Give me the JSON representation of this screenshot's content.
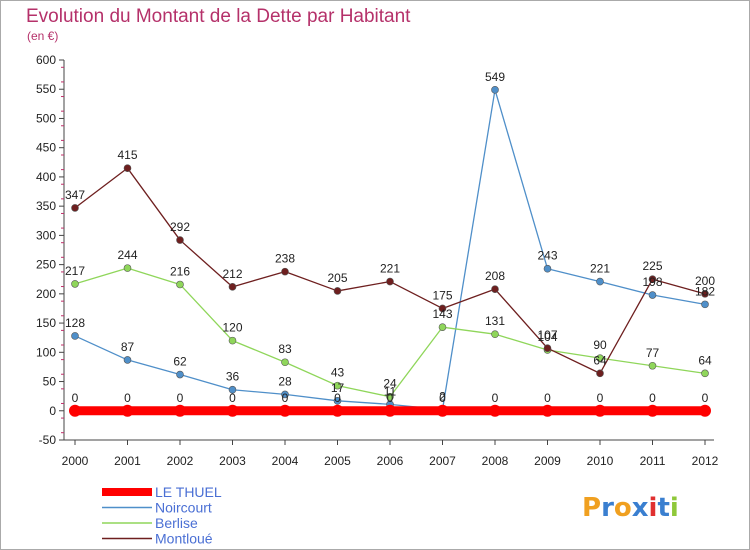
{
  "chart_data": {
    "type": "line",
    "title": "Evolution du Montant de la Dette par Habitant",
    "subtitle": "(en €)",
    "x": [
      "2000",
      "2001",
      "2002",
      "2003",
      "2004",
      "2005",
      "2006",
      "2007",
      "2008",
      "2009",
      "2010",
      "2011",
      "2012"
    ],
    "ylim": [
      -50,
      600
    ],
    "yticks": [
      -50,
      0,
      50,
      100,
      150,
      200,
      250,
      300,
      350,
      400,
      450,
      500,
      550,
      600
    ],
    "grid": false,
    "legend_position": "bottom-left",
    "series": [
      {
        "name": "LE THUEL",
        "color": "#ff0000",
        "values": [
          0,
          0,
          0,
          0,
          0,
          0,
          0,
          0,
          0,
          0,
          0,
          0,
          0
        ],
        "labels": [
          "0",
          "0",
          "0",
          "0",
          "0",
          "0",
          "0",
          "0",
          "0",
          "0",
          "0",
          "0",
          "0"
        ]
      },
      {
        "name": "Noircourt",
        "color": "#4f8fc9",
        "values": [
          128,
          87,
          62,
          36,
          28,
          17,
          11,
          2,
          549,
          243,
          221,
          198,
          182
        ],
        "labels": [
          "128",
          "87",
          "62",
          "36",
          "28",
          "17",
          "11",
          "2",
          "549",
          "243",
          "221",
          "198",
          "182"
        ]
      },
      {
        "name": "Berlise",
        "color": "#8fd65a",
        "values": [
          217,
          244,
          216,
          120,
          83,
          43,
          24,
          143,
          131,
          104,
          90,
          77,
          64
        ],
        "labels": [
          "217",
          "244",
          "216",
          "120",
          "83",
          "43",
          "24",
          "143",
          "131",
          "104",
          "90",
          "77",
          "64"
        ]
      },
      {
        "name": "Montloué",
        "color": "#6e1f1f",
        "values": [
          347,
          415,
          292,
          212,
          238,
          205,
          221,
          175,
          208,
          107,
          64,
          225,
          200
        ],
        "labels": [
          "347",
          "415",
          "292",
          "212",
          "238",
          "205",
          "221",
          "175",
          "208",
          "107",
          "64",
          "225",
          "200"
        ]
      }
    ]
  },
  "logo": {
    "text": "Proxiti",
    "letters": [
      "P",
      "r",
      "o",
      "x",
      "i",
      "t",
      "i"
    ],
    "colors": [
      "#f0a020",
      "#3a7fd0",
      "#f0a020",
      "#3a7fd0",
      "#e03030",
      "#3a7fd0",
      "#8fc83a"
    ]
  }
}
